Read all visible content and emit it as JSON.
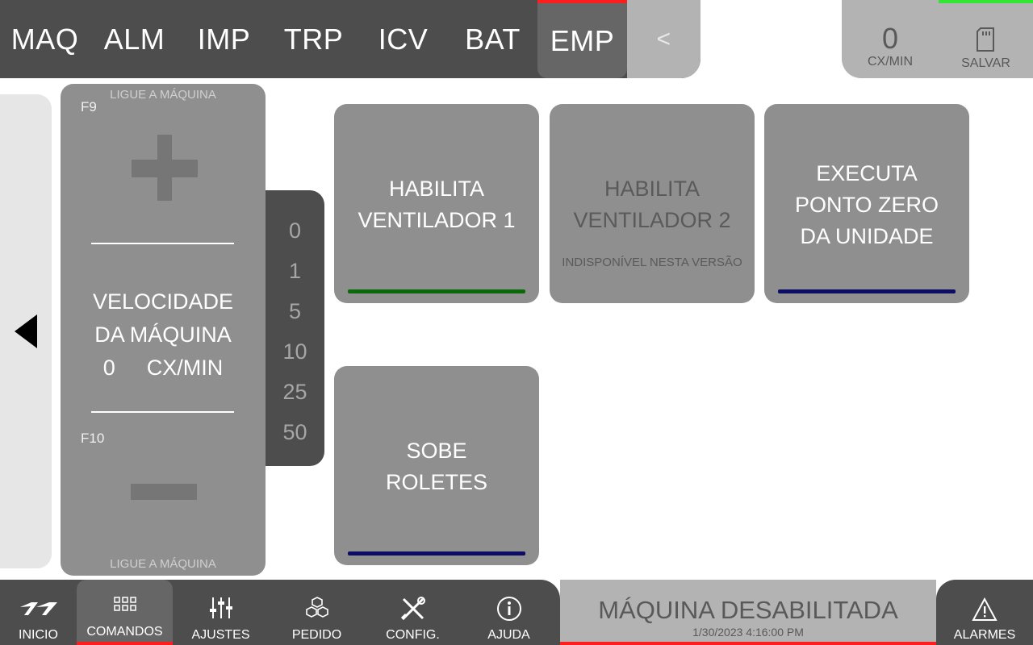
{
  "top_tabs": [
    "MAQ",
    "ALM",
    "IMP",
    "TRP",
    "ICV",
    "BAT",
    "EMP"
  ],
  "active_tab": "EMP",
  "back_label": "<",
  "counter": {
    "value": "0",
    "unit": "CX/MIN"
  },
  "save_label": "SALVAR",
  "speed_panel": {
    "hint_top": "LIGUE A MÁQUINA",
    "hint_bottom": "LIGUE A MÁQUINA",
    "key_up": "F9",
    "key_down": "F10",
    "title_line1": "VELOCIDADE",
    "title_line2": "DA MÁQUINA",
    "value": "0",
    "unit": "CX/MIN"
  },
  "steps": [
    "0",
    "1",
    "5",
    "10",
    "25",
    "50"
  ],
  "commands": [
    {
      "line1": "HABILITA",
      "line2": "VENTILADOR 1",
      "line3": "",
      "sub": "",
      "bar_color": "#0a6a0a"
    },
    {
      "line1": "HABILITA",
      "line2": "VENTILADOR 2",
      "line3": "",
      "sub": "INDISPONÍVEL NESTA VERSÃO",
      "bar_color": ""
    },
    {
      "line1": "EXECUTA",
      "line2": "PONTO ZERO",
      "line3": "DA UNIDADE",
      "sub": "",
      "bar_color": "#0d0d66"
    },
    {
      "line1": "SOBE",
      "line2": "ROLETES",
      "line3": "",
      "sub": "",
      "bar_color": "#0d0d66"
    }
  ],
  "nav": [
    {
      "label": "INICIO",
      "icon": "logo-icon"
    },
    {
      "label": "COMANDOS",
      "icon": "grid-icon"
    },
    {
      "label": "AJUSTES",
      "icon": "sliders-icon"
    },
    {
      "label": "PEDIDO",
      "icon": "boxes-icon"
    },
    {
      "label": "CONFIG.",
      "icon": "tools-icon"
    },
    {
      "label": "AJUDA",
      "icon": "info-icon"
    }
  ],
  "active_nav": "COMANDOS",
  "status": {
    "title": "MÁQUINA DESABILITADA",
    "timestamp": "1/30/2023 4:16:00 PM"
  },
  "alarm_label": "ALARMES",
  "colors": {
    "accent_red": "#ff1e1e",
    "accent_green": "#33e633",
    "dark": "#4d4d4d",
    "button": "#8f8f8f"
  }
}
